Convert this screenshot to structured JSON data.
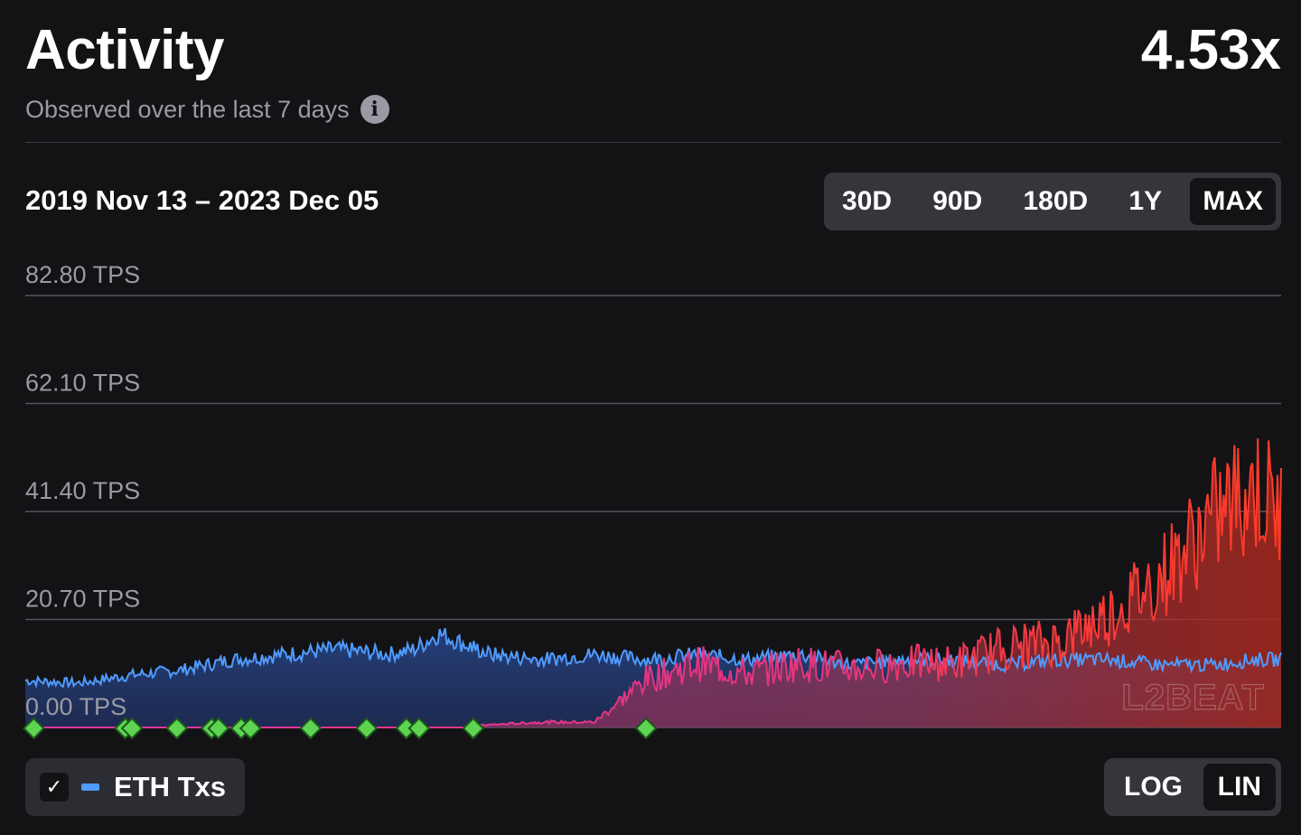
{
  "header": {
    "title": "Activity",
    "subtitle": "Observed over the last 7 days",
    "ratio": "4.53x"
  },
  "range_label": "2019 Nov 13 – 2023 Dec 05",
  "timeframes": [
    {
      "label": "30D",
      "active": false
    },
    {
      "label": "90D",
      "active": false
    },
    {
      "label": "180D",
      "active": false
    },
    {
      "label": "1Y",
      "active": false
    },
    {
      "label": "MAX",
      "active": true
    }
  ],
  "legend": {
    "label": "ETH Txs",
    "checked": true,
    "color": "#4f9bff"
  },
  "scale": [
    {
      "label": "LOG",
      "active": false
    },
    {
      "label": "LIN",
      "active": true
    }
  ],
  "watermark": "L2BEAT",
  "chart_data": {
    "type": "area",
    "x_range": [
      "2019-11-13",
      "2023-12-05"
    ],
    "ylim": [
      0,
      82.8
    ],
    "y_tick_labels": [
      "82.80 TPS",
      "62.10 TPS",
      "41.40 TPS",
      "20.70 TPS",
      "0.00 TPS"
    ],
    "y_ticks": [
      82.8,
      62.1,
      41.4,
      20.7,
      0
    ],
    "grid": true,
    "colors": {
      "eth": "#4f9bff",
      "l2_low": "#e0359f",
      "l2_high": "#ff3b26",
      "milestone": "#5ed452"
    },
    "x": [
      "2019-11-13",
      "2020-01-15",
      "2020-03-15",
      "2020-05-15",
      "2020-07-15",
      "2020-09-15",
      "2020-11-15",
      "2021-01-15",
      "2021-02-15",
      "2021-03-15",
      "2021-05-15",
      "2021-07-15",
      "2021-09-15",
      "2021-11-15",
      "2022-01-15",
      "2022-03-15",
      "2022-05-15",
      "2022-07-15",
      "2022-09-15",
      "2022-11-15",
      "2023-01-15",
      "2023-03-15",
      "2023-05-15",
      "2023-07-15",
      "2023-09-15",
      "2023-11-01",
      "2023-12-05"
    ],
    "series": [
      {
        "name": "ETH Txs",
        "values": [
          9,
          8.5,
          10,
          11,
          13,
          14,
          15,
          14,
          15,
          18,
          14,
          13,
          14,
          13,
          14,
          13,
          14,
          12,
          13,
          13,
          12,
          13,
          13,
          12,
          12,
          13,
          13
        ]
      },
      {
        "values": [
          0,
          0,
          0,
          0,
          0,
          0,
          0,
          0,
          0,
          0,
          0.5,
          1,
          1,
          9,
          12,
          10,
          12,
          11,
          12,
          12,
          15,
          16,
          21,
          28,
          39,
          45,
          40
        ]
      }
    ],
    "milestones": [
      "2019-11-23",
      "2020-03-10",
      "2020-03-18",
      "2020-05-10",
      "2020-06-20",
      "2020-06-28",
      "2020-07-25",
      "2020-08-05",
      "2020-10-15",
      "2020-12-20",
      "2021-02-05",
      "2021-02-20",
      "2021-04-25",
      "2021-11-15"
    ]
  }
}
